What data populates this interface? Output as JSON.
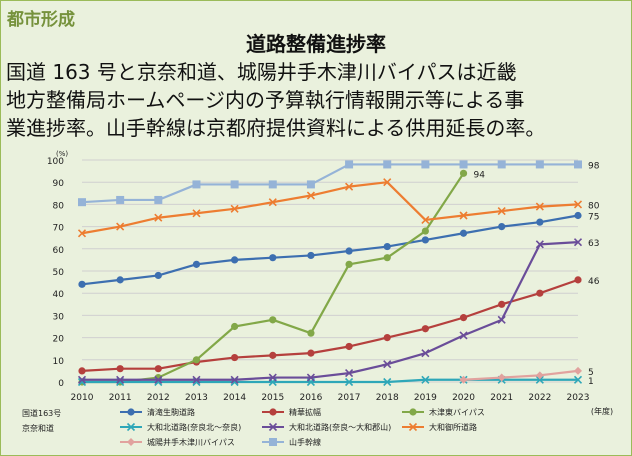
{
  "section": "都市形成",
  "heading": "道路整備進捗率",
  "description": [
    "国道 163 号と京奈和道、城陽井手木津川バイパスは近畿",
    "地方整備局ホームページ内の予算執行情報開示等による事",
    "業進捗率。山手幹線は京都府提供資料による供用延長の率。"
  ],
  "chart_data": {
    "type": "line",
    "title": "",
    "xlabel": "(年度)",
    "ylabel": "(%)",
    "ylim": [
      0,
      100
    ],
    "yticks": [
      0,
      10,
      20,
      30,
      40,
      50,
      60,
      70,
      80,
      90,
      100
    ],
    "x": [
      2010,
      2011,
      2012,
      2013,
      2014,
      2015,
      2016,
      2017,
      2018,
      2019,
      2020,
      2021,
      2022,
      2023
    ],
    "grid": true,
    "legend_groups": [
      {
        "label": "国道163号",
        "series_indices": [
          0,
          1,
          2
        ]
      },
      {
        "label": "京奈和道",
        "series_indices": [
          3,
          4,
          5
        ]
      }
    ],
    "series": [
      {
        "name": "清滝生駒道路",
        "color": "#3d6fb0",
        "marker": "circle",
        "end_label": "75",
        "values": [
          44,
          46,
          48,
          53,
          55,
          56,
          57,
          59,
          61,
          64,
          67,
          70,
          72,
          75
        ]
      },
      {
        "name": "精華拡幅",
        "color": "#b5403d",
        "marker": "circle",
        "end_label": "46",
        "values": [
          5,
          6,
          6,
          9,
          11,
          12,
          13,
          16,
          20,
          24,
          29,
          35,
          40,
          46
        ]
      },
      {
        "name": "木津東バイパス",
        "color": "#82a848",
        "marker": "circle",
        "end_label": "94",
        "values": [
          0,
          0,
          2,
          10,
          25,
          28,
          22,
          53,
          56,
          68,
          94,
          null,
          null,
          null
        ]
      },
      {
        "name": "大和北道路(奈良北～奈良)",
        "color": "#2ea7b8",
        "marker": "cross",
        "end_label": "1",
        "values": [
          0,
          0,
          0,
          0,
          0,
          0,
          0,
          0,
          0,
          1,
          1,
          1,
          1,
          1
        ]
      },
      {
        "name": "大和北道路(奈良～大和郡山)",
        "color": "#6a4d99",
        "marker": "cross",
        "end_label": "63",
        "values": [
          1,
          1,
          1,
          1,
          1,
          2,
          2,
          4,
          8,
          13,
          21,
          28,
          62,
          63
        ]
      },
      {
        "name": "大和御所道路",
        "color": "#ed7d31",
        "marker": "cross",
        "end_label": "80",
        "values": [
          67,
          70,
          74,
          76,
          78,
          81,
          84,
          88,
          90,
          73,
          75,
          77,
          79,
          80
        ]
      },
      {
        "name": "城陽井手木津川バイパス",
        "color": "#e1a29e",
        "marker": "diamond",
        "end_label": "5",
        "values": [
          null,
          null,
          null,
          null,
          null,
          null,
          null,
          null,
          null,
          null,
          1,
          2,
          3,
          5
        ]
      },
      {
        "name": "山手幹線",
        "color": "#95b3d7",
        "marker": "square",
        "end_label": "98",
        "values": [
          81,
          82,
          82,
          89,
          89,
          89,
          89,
          98,
          98,
          98,
          98,
          98,
          98,
          98
        ]
      }
    ]
  }
}
